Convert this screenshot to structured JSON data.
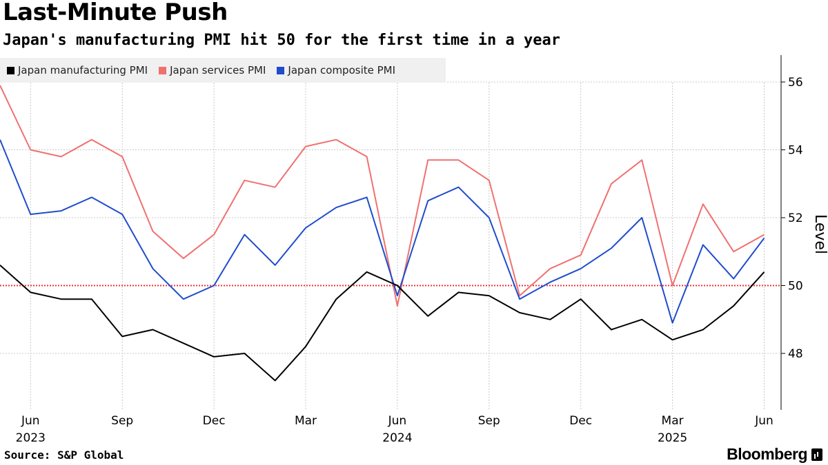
{
  "title": "Last-Minute Push",
  "subtitle": "Japan's manufacturing PMI hit 50 for the first time in a year",
  "source": "Source: S&P Global",
  "brand": "Bloomberg",
  "chart_data": {
    "type": "line",
    "ylabel": "Level",
    "ylim": [
      46.5,
      56.8
    ],
    "yticks": [
      48,
      50,
      52,
      54,
      56
    ],
    "grid": true,
    "legend_position": "top-left",
    "reference_line": {
      "value": 50,
      "color": "#e8303a",
      "style": "dotted"
    },
    "x": [
      "2023-05",
      "2023-06",
      "2023-07",
      "2023-08",
      "2023-09",
      "2023-10",
      "2023-11",
      "2023-12",
      "2024-01",
      "2024-02",
      "2024-03",
      "2024-04",
      "2024-05",
      "2024-06",
      "2024-07",
      "2024-08",
      "2024-09",
      "2024-10",
      "2024-11",
      "2024-12",
      "2025-01",
      "2025-02",
      "2025-03",
      "2025-04",
      "2025-05",
      "2025-06"
    ],
    "xticks": [
      {
        "month": "Jun",
        "year": "2023",
        "index": 1
      },
      {
        "month": "Sep",
        "year": "",
        "index": 4
      },
      {
        "month": "Dec",
        "year": "",
        "index": 7
      },
      {
        "month": "Mar",
        "year": "",
        "index": 10
      },
      {
        "month": "Jun",
        "year": "2024",
        "index": 13
      },
      {
        "month": "Sep",
        "year": "",
        "index": 16
      },
      {
        "month": "Dec",
        "year": "",
        "index": 19
      },
      {
        "month": "Mar",
        "year": "2025",
        "index": 22
      },
      {
        "month": "Jun",
        "year": "",
        "index": 25
      }
    ],
    "series": [
      {
        "name": "Japan manufacturing PMI",
        "color": "#000000",
        "values": [
          50.6,
          49.8,
          49.6,
          49.6,
          48.5,
          48.7,
          48.3,
          47.9,
          48.0,
          47.2,
          48.2,
          49.6,
          50.4,
          50.0,
          49.1,
          49.8,
          49.7,
          49.2,
          49.0,
          49.6,
          48.7,
          49.0,
          48.4,
          48.7,
          49.4,
          50.4
        ]
      },
      {
        "name": "Japan services PMI",
        "color": "#f07070",
        "values": [
          55.9,
          54.0,
          53.8,
          54.3,
          53.8,
          51.6,
          50.8,
          51.5,
          53.1,
          52.9,
          54.1,
          54.3,
          53.8,
          49.4,
          53.7,
          53.7,
          53.1,
          49.7,
          50.5,
          50.9,
          53.0,
          53.7,
          50.0,
          52.4,
          51.0,
          51.5
        ]
      },
      {
        "name": "Japan composite PMI",
        "color": "#1f4ccc",
        "values": [
          54.3,
          52.1,
          52.2,
          52.6,
          52.1,
          50.5,
          49.6,
          50.0,
          51.5,
          50.6,
          51.7,
          52.3,
          52.6,
          49.7,
          52.5,
          52.9,
          52.0,
          49.6,
          50.1,
          50.5,
          51.1,
          52.0,
          48.9,
          51.2,
          50.2,
          51.4
        ]
      }
    ]
  }
}
